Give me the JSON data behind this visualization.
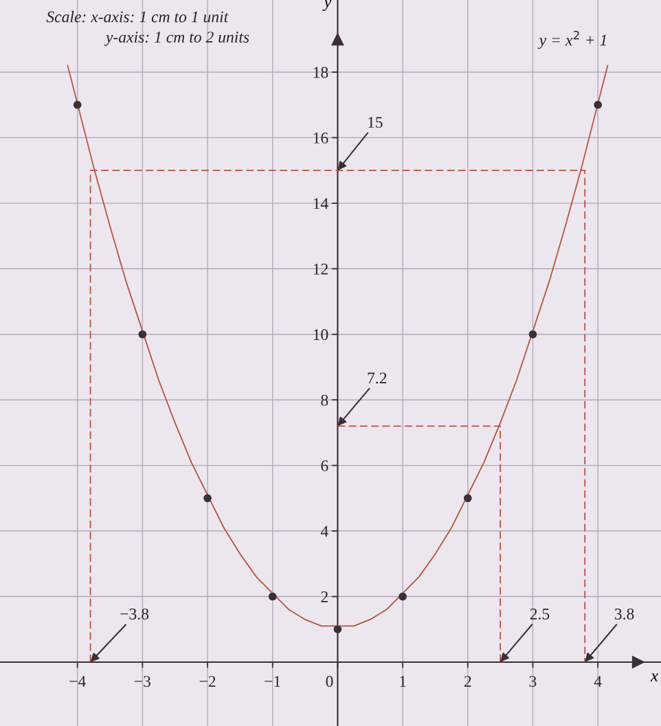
{
  "chart_data": {
    "type": "line",
    "xlabel": "x",
    "ylabel": "y",
    "xlim": [
      -5.19,
      4.97
    ],
    "ylim": [
      -1.95,
      20.2
    ],
    "xticks": [
      {
        "value": -4,
        "label": "−4"
      },
      {
        "value": -3,
        "label": "−3"
      },
      {
        "value": -2,
        "label": "−2"
      },
      {
        "value": -1,
        "label": "−1"
      },
      0,
      1,
      2,
      3,
      4
    ],
    "yticks": [
      2,
      4,
      6,
      8,
      10,
      12,
      14,
      16,
      18
    ],
    "grid": true,
    "series": [
      {
        "name": "y = x$^{2}$ + 1",
        "color": "#b5543c",
        "marker": "none",
        "line_style": "solid",
        "x": [
          -4.15,
          -3.75,
          -3.5,
          -3.25,
          -2.75,
          -2.5,
          -2.25,
          -1.75,
          -1.5,
          -1.25,
          -0.75,
          -0.5,
          -0.25,
          0.25,
          0.5,
          0.75,
          1.25,
          1.5,
          1.75,
          2.25,
          2.5,
          2.75,
          3.25,
          3.5,
          3.75,
          4.15
        ],
        "values": [
          18.2,
          15.1,
          13.3,
          11.6,
          8.6,
          7.3,
          6.1,
          4.1,
          3.3,
          2.6,
          1.6,
          1.3,
          1.1,
          1.1,
          1.3,
          1.6,
          2.6,
          3.3,
          4.1,
          6.1,
          7.3,
          8.6,
          11.6,
          13.3,
          15.1,
          18.2
        ]
      },
      {
        "type": "scatter",
        "color": "#3a3035",
        "marker": "circle",
        "x": [
          -4,
          -3,
          -2,
          -1,
          0,
          1,
          2,
          3,
          4
        ],
        "values": [
          17,
          10,
          5,
          2,
          1,
          2,
          5,
          10,
          17
        ]
      },
      {
        "type": "line",
        "color": "#b5543c",
        "marker": "none",
        "line_style": "dashed",
        "x": [
          -3.8,
          -3.8,
          3.8,
          3.8
        ],
        "values": [
          0,
          15,
          15,
          0
        ]
      },
      {
        "type": "line",
        "color": "#b5543c",
        "marker": "none",
        "line_style": "dashed",
        "x": [
          0,
          2.5,
          2.5
        ],
        "values": [
          7.2,
          7.2,
          0
        ]
      }
    ],
    "annotations": [
      "Scale: x-axis: 1 cm to 1 unit",
      "y-axis: 1 cm to 2 units",
      {
        "text": "15",
        "x": 0,
        "y": 15
      },
      {
        "text": "7.2",
        "x": 0,
        "y": 7.2
      },
      {
        "text": "−3.8",
        "x": -3.8,
        "y": 0
      },
      {
        "text": "2.5",
        "x": 2.5,
        "y": 0
      },
      {
        "text": "3.8",
        "x": 3.8,
        "y": 0
      }
    ]
  }
}
